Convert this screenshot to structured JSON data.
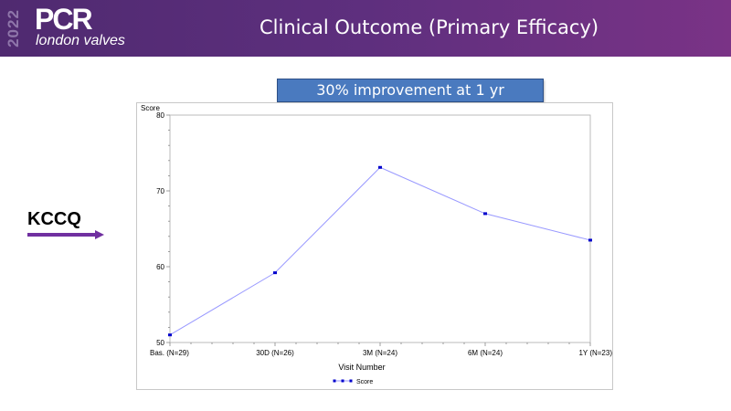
{
  "header": {
    "logo_year": "2022",
    "logo_brand": "PCR",
    "logo_subtitle": "london valves",
    "title": "Clinical Outcome (Primary Efficacy)"
  },
  "banner": {
    "text": "30% improvement at 1 yr"
  },
  "side_label": {
    "text": "KCCQ",
    "arrow_icon": "right-arrow-icon"
  },
  "colors": {
    "header_start": "#4f2a70",
    "header_end": "#7a3386",
    "banner_fill": "#4a7abf",
    "arrow": "#7030a0",
    "series_line": "#9999ff",
    "series_marker": "#0000cc"
  },
  "chart_data": {
    "type": "line",
    "title": "",
    "xlabel": "Visit Number",
    "ylabel": "Score",
    "categories": [
      "Bas. (N=29)",
      "30D (N=26)",
      "3M (N=24)",
      "6M (N=24)",
      "1Y (N=23)"
    ],
    "series": [
      {
        "name": "Score",
        "values": [
          51.0,
          59.2,
          73.1,
          67.0,
          63.5
        ]
      }
    ],
    "ylim": [
      50,
      80
    ],
    "yticks": [
      50,
      60,
      70,
      80
    ],
    "y_minor_step": 2,
    "grid": false,
    "legend": "bottom-center"
  }
}
